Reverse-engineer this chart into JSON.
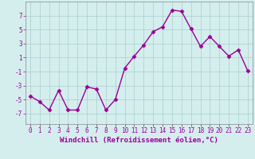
{
  "x": [
    0,
    1,
    2,
    3,
    4,
    5,
    6,
    7,
    8,
    9,
    10,
    11,
    12,
    13,
    14,
    15,
    16,
    17,
    18,
    19,
    20,
    21,
    22,
    23
  ],
  "y": [
    -4.5,
    -5.3,
    -6.5,
    -3.7,
    -6.5,
    -6.5,
    -3.2,
    -3.5,
    -6.5,
    -5.0,
    -0.5,
    1.2,
    2.8,
    4.7,
    5.4,
    7.8,
    7.6,
    5.1,
    2.6,
    4.0,
    2.6,
    1.2,
    2.1,
    -0.9
  ],
  "line_color": "#990099",
  "marker": "D",
  "markersize": 2.5,
  "linewidth": 1.0,
  "background_color": "#d4eeee",
  "grid_color": "#aacccc",
  "xlabel": "Windchill (Refroidissement éolien,°C)",
  "xlabel_fontsize": 6.5,
  "tick_color": "#990099",
  "tick_fontsize": 5.5,
  "ylabel_ticks": [
    -7,
    -5,
    -3,
    -1,
    1,
    3,
    5,
    7
  ],
  "xlim": [
    -0.5,
    23.5
  ],
  "ylim": [
    -8.5,
    9.0
  ]
}
